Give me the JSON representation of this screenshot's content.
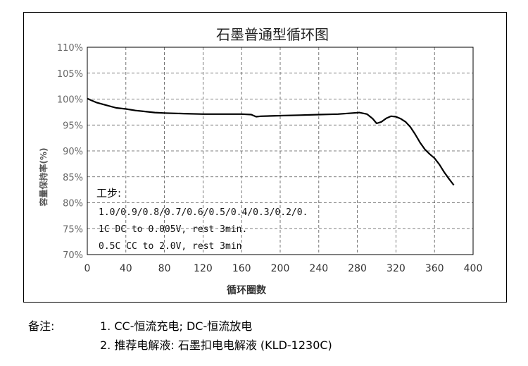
{
  "chart_data": {
    "type": "line",
    "title": "石墨普通型循环图",
    "xlabel": "循环圈数",
    "ylabel": "容量保持率(%)",
    "xlim": [
      0,
      400
    ],
    "ylim": [
      70,
      110
    ],
    "x_ticks": [
      0,
      40,
      80,
      120,
      160,
      200,
      240,
      280,
      320,
      360,
      400
    ],
    "x_tick_labels": [
      "0",
      "40",
      "80",
      "120",
      "160",
      "200",
      "240",
      "280",
      "320",
      "360",
      "400"
    ],
    "y_ticks": [
      70,
      75,
      80,
      85,
      90,
      95,
      100,
      105,
      110
    ],
    "y_tick_labels": [
      "70%",
      "75%",
      "80%",
      "85%",
      "90%",
      "95%",
      "100%",
      "105%",
      "110%"
    ],
    "grid": true,
    "line_color": "#000000",
    "series": [
      {
        "x": [
          0,
          5,
          10,
          20,
          30,
          40,
          50,
          60,
          70,
          80,
          100,
          120,
          140,
          160,
          170,
          175,
          180,
          200,
          220,
          240,
          260,
          275,
          282,
          290,
          296,
          300,
          305,
          310,
          315,
          320,
          325,
          330,
          335,
          340,
          345,
          350,
          355,
          360,
          365,
          370,
          375,
          380
        ],
        "y": [
          100.1,
          99.7,
          99.3,
          98.8,
          98.3,
          98.1,
          97.8,
          97.6,
          97.4,
          97.3,
          97.2,
          97.1,
          97.1,
          97.1,
          97.0,
          96.6,
          96.7,
          96.8,
          96.9,
          97.0,
          97.1,
          97.3,
          97.4,
          97.1,
          96.2,
          95.3,
          95.6,
          96.3,
          96.7,
          96.6,
          96.2,
          95.6,
          94.6,
          93.2,
          91.6,
          90.3,
          89.4,
          88.6,
          87.4,
          85.9,
          84.6,
          83.4
        ]
      }
    ],
    "annotation": {
      "title": "工步:",
      "lines": [
        "1.0/0.9/0.8/0.7/0.6/0.5/0.4/0.3/0.2/0.",
        "1C DC to 0.005V, rest 3min.",
        "0.5C CC to 2.0V, rest 3min"
      ]
    }
  },
  "notes": {
    "label": "备注:",
    "lines": [
      "1. CC-恒流充电; DC-恒流放电",
      "2. 推荐电解液: 石墨扣电电解液 (KLD-1230C)"
    ]
  }
}
